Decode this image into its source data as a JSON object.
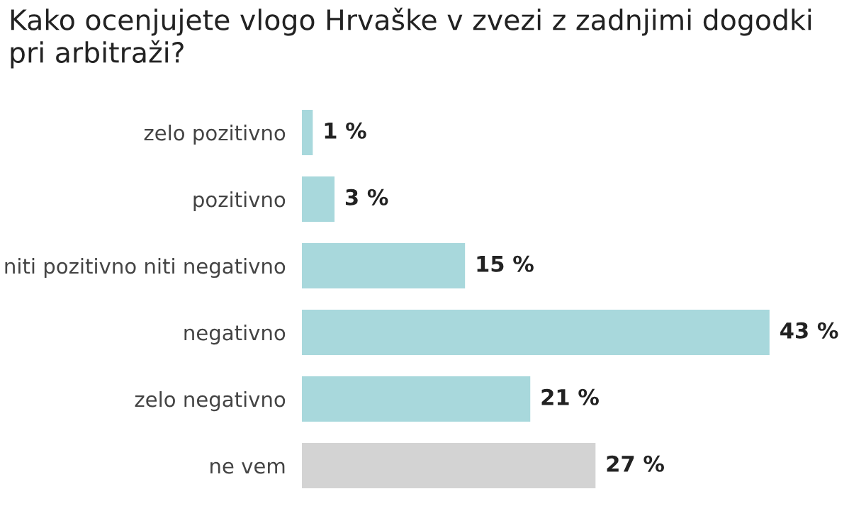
{
  "chart_data": {
    "type": "bar",
    "orientation": "horizontal",
    "title": "Kako ocenjujete vlogo Hrvaške v zvezi z zadnjimi dogodki pri arbitraži?",
    "categories": [
      "zelo pozitivno",
      "pozitivno",
      "niti pozitivno niti negativno",
      "negativno",
      "zelo negativno",
      "ne vem"
    ],
    "values": [
      1,
      3,
      15,
      43,
      21,
      27
    ],
    "colors": [
      "#a8d8dc",
      "#a8d8dc",
      "#a8d8dc",
      "#a8d8dc",
      "#a8d8dc",
      "#d3d3d3"
    ],
    "value_labels": [
      "1 %",
      "3 %",
      "15 %",
      "43 %",
      "21 %",
      "27 %"
    ],
    "tick_labels": "y",
    "grid": false
  }
}
